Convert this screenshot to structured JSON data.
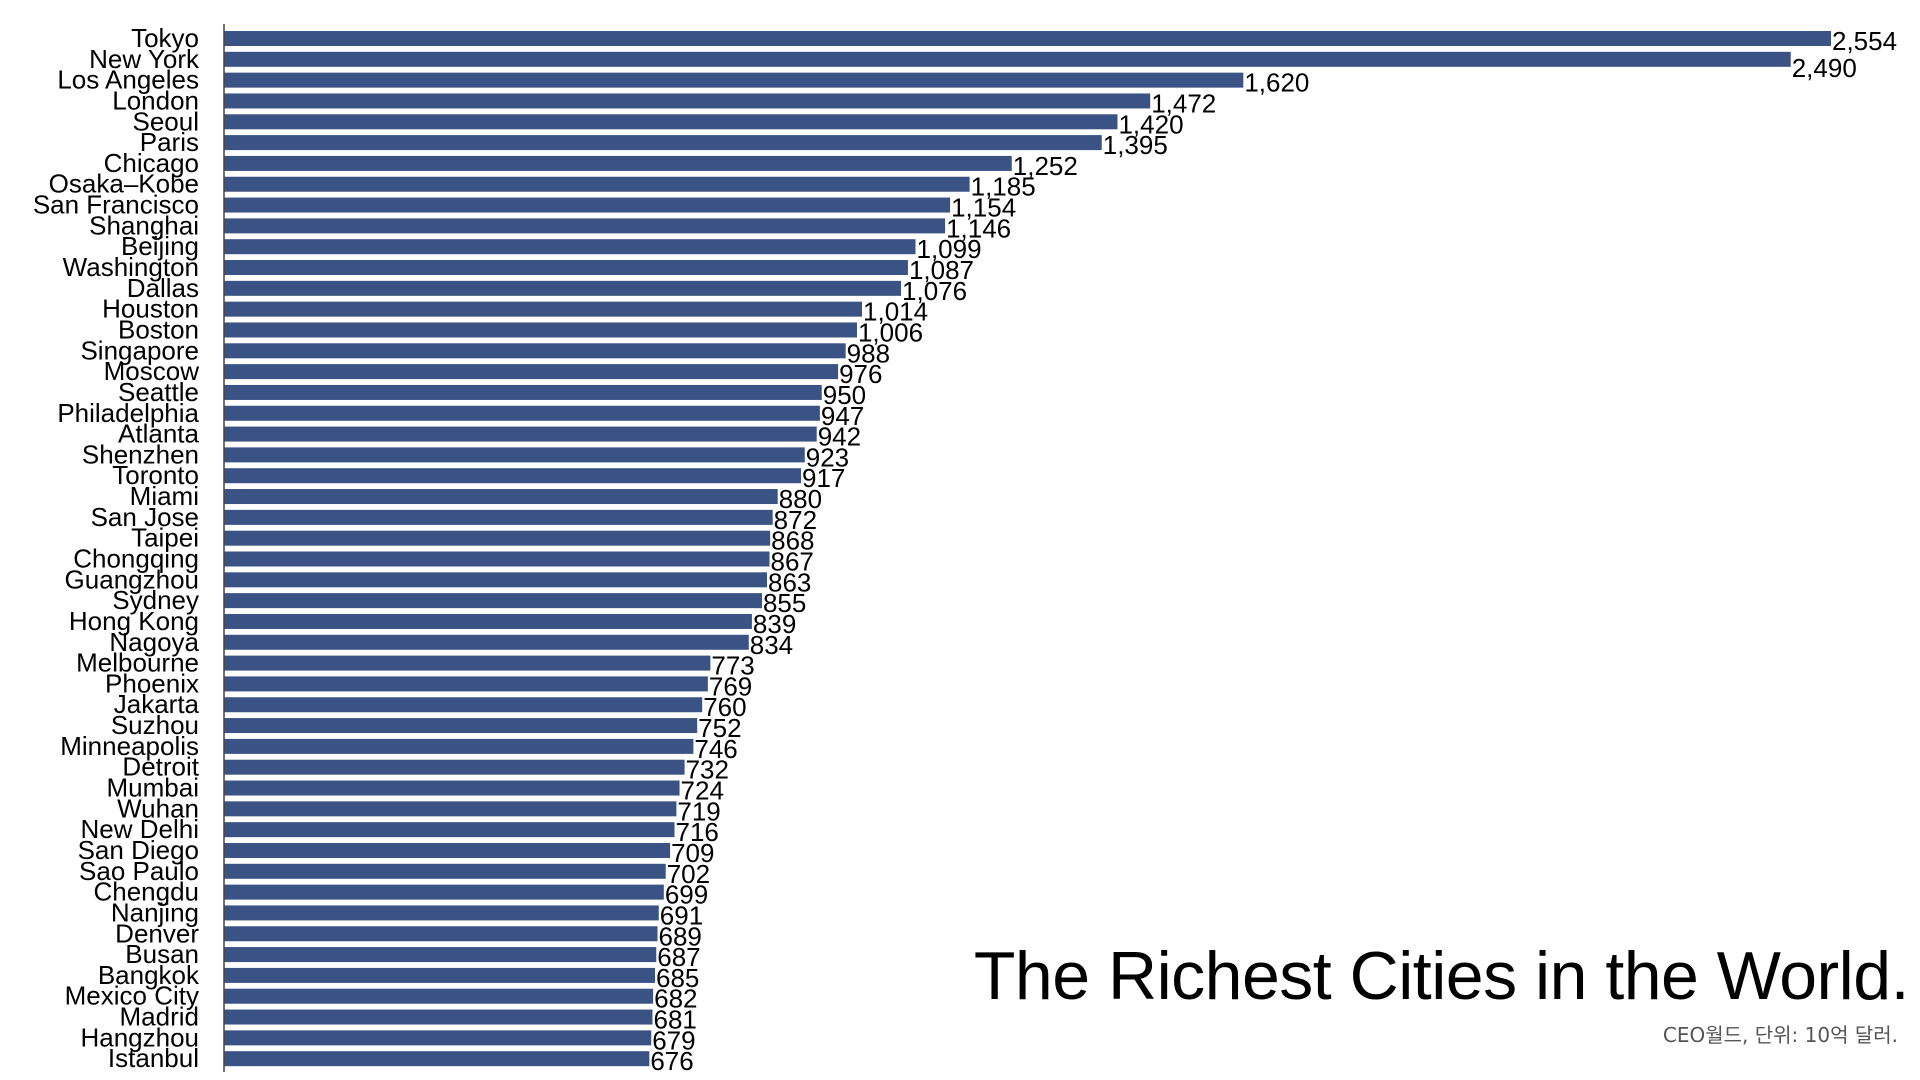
{
  "chart_data": {
    "type": "bar",
    "orientation": "horizontal",
    "title": "The Richest Cities in the World.",
    "source": "CEO월드, 단위: 10억 달러.",
    "bar_color": "#3b5285",
    "xlim": [
      0,
      2554
    ],
    "categories": [
      "Tokyo",
      "New York",
      "Los Angeles",
      "London",
      "Seoul",
      "Paris",
      "Chicago",
      "Osaka–Kobe",
      "San Francisco",
      "Shanghai",
      "Beijing",
      "Washington",
      "Dallas",
      "Houston",
      "Boston",
      "Singapore",
      "Moscow",
      "Seattle",
      "Philadelphia",
      "Atlanta",
      "Shenzhen",
      "Toronto",
      "Miami",
      "San Jose",
      "Taipei",
      "Chongqing",
      "Guangzhou",
      "Sydney",
      "Hong Kong",
      "Nagoya",
      "Melbourne",
      "Phoenix",
      "Jakarta",
      "Suzhou",
      "Minneapolis",
      "Detroit",
      "Mumbai",
      "Wuhan",
      "New Delhi",
      "San Diego",
      "Sao Paulo",
      "Chengdu",
      "Nanjing",
      "Denver",
      "Busan",
      "Bangkok",
      "Mexico City",
      "Madrid",
      "Hangzhou",
      "Istanbul"
    ],
    "values": [
      2554,
      2490,
      1620,
      1472,
      1420,
      1395,
      1252,
      1185,
      1154,
      1146,
      1099,
      1087,
      1076,
      1014,
      1006,
      988,
      976,
      950,
      947,
      942,
      923,
      917,
      880,
      872,
      868,
      867,
      863,
      855,
      839,
      834,
      773,
      769,
      760,
      752,
      746,
      732,
      724,
      719,
      716,
      709,
      702,
      699,
      691,
      689,
      687,
      685,
      682,
      681,
      679,
      676
    ],
    "value_labels": [
      "2,554",
      "2,490",
      "1,620",
      "1,472",
      "1,420",
      "1,395",
      "1,252",
      "1,185",
      "1,154",
      "1,146",
      "1,099",
      "1,087",
      "1,076",
      "1,014",
      "1,006",
      "988",
      "976",
      "950",
      "947",
      "942",
      "923",
      "917",
      "880",
      "872",
      "868",
      "867",
      "863",
      "855",
      "839",
      "834",
      "773",
      "769",
      "760",
      "752",
      "746",
      "732",
      "724",
      "719",
      "716",
      "709",
      "702",
      "699",
      "691",
      "689",
      "687",
      "685",
      "682",
      "681",
      "679",
      "676"
    ]
  }
}
